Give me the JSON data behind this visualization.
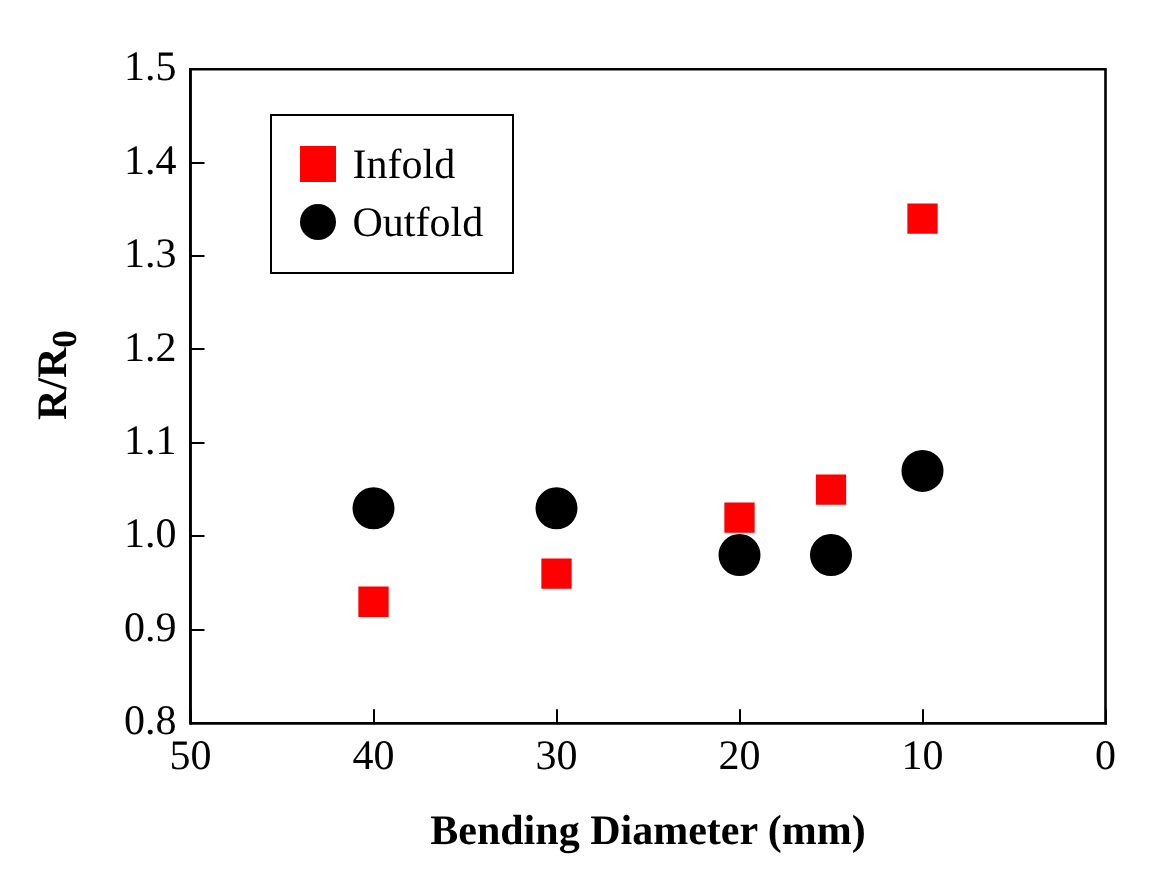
{
  "chart_data": {
    "type": "scatter",
    "xlabel": "Bending Diameter (mm)",
    "ylabel": "R/R$_{0}$",
    "xlim": [
      50,
      0
    ],
    "xticks": [
      50,
      40,
      30,
      20,
      10,
      0
    ],
    "ylim": [
      0.8,
      1.5
    ],
    "yticks": [
      0.8,
      0.9,
      {
        "value": 1,
        "label": "1.0"
      },
      1.1,
      1.2,
      1.3,
      1.4,
      1.5
    ],
    "grid": false,
    "legend": "top left",
    "series": [
      {
        "name": "Infold",
        "color": "#ff0000",
        "marker": "square",
        "x": [
          40,
          30,
          20,
          15,
          10
        ],
        "values": [
          0.93,
          0.96,
          1.02,
          1.05,
          1.34
        ]
      },
      {
        "name": "Outfold",
        "color": "#000000",
        "marker": "circle",
        "x": [
          40,
          30,
          20,
          15,
          10
        ],
        "values": [
          1.03,
          1.03,
          0.98,
          0.98,
          1.07
        ]
      }
    ]
  }
}
